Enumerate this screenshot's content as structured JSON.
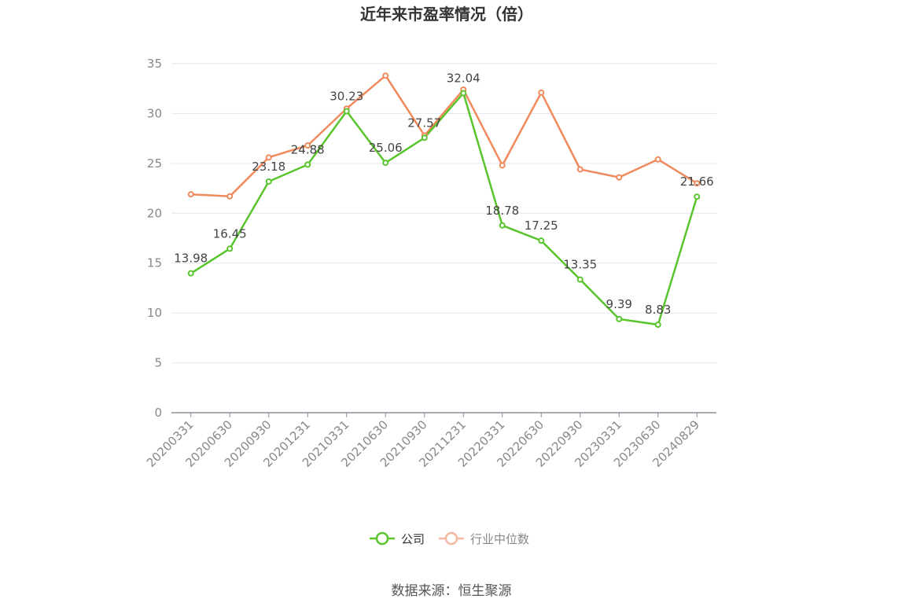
{
  "chart_data": {
    "type": "line",
    "title": "近年来市盈率情况（倍）",
    "xlabel": "",
    "ylabel": "",
    "ylim": [
      0,
      35
    ],
    "yticks": [
      0,
      5,
      10,
      15,
      20,
      25,
      30,
      35
    ],
    "grid": true,
    "legend_position": "bottom-center",
    "categories": [
      "20200331",
      "20200630",
      "20200930",
      "20201231",
      "20210331",
      "20210630",
      "20210930",
      "20211231",
      "20220331",
      "20220630",
      "20220930",
      "20230331",
      "20230630",
      "20240829"
    ],
    "series": [
      {
        "name": "公司",
        "color": "#5ac42d",
        "values": [
          13.98,
          16.45,
          23.18,
          24.88,
          30.23,
          25.06,
          27.57,
          32.04,
          18.78,
          17.25,
          13.35,
          9.39,
          8.83,
          21.66
        ],
        "labels": [
          "13.98",
          "16.45",
          "23.18",
          "24.88",
          "30.23",
          "25.06",
          "27.57",
          "32.04",
          "18.78",
          "17.25",
          "13.35",
          "9.39",
          "8.83",
          "21.66"
        ]
      },
      {
        "name": "行业中位数",
        "color": "#f08a5d",
        "values": [
          21.9,
          21.7,
          25.6,
          26.8,
          30.5,
          33.8,
          27.8,
          32.4,
          24.8,
          32.1,
          24.4,
          23.6,
          25.4,
          23.0
        ]
      }
    ]
  },
  "source": "数据来源：恒生聚源"
}
